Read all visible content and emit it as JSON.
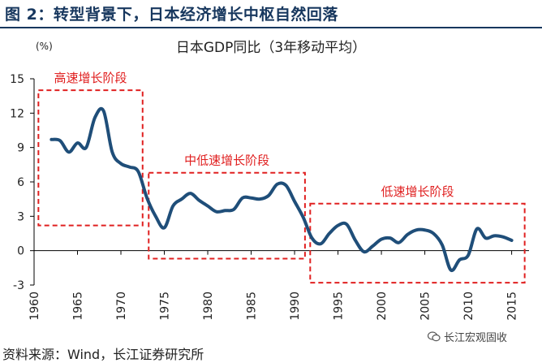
{
  "figure_title": "图 2：转型背景下，日本经济增长中枢自然回落",
  "source_note": "资料来源：Wind，长江证券研究所",
  "watermark": "长江宏观固收",
  "colors": {
    "line": "#1f4e79",
    "box": "#e02020",
    "label": "#e02020",
    "title": "#17375e"
  },
  "chart_data": {
    "type": "line",
    "title": "日本GDP同比（3年移动平均）",
    "ylabel": "(%)",
    "xlabel": "",
    "xlim": [
      1960,
      2017
    ],
    "ylim": [
      -3,
      15
    ],
    "xticks": [
      1960,
      1965,
      1970,
      1975,
      1980,
      1985,
      1990,
      1995,
      2000,
      2005,
      2010,
      2015
    ],
    "yticks": [
      -3,
      0,
      3,
      6,
      9,
      12,
      15
    ],
    "grid": false,
    "series": [
      {
        "name": "",
        "points": [
          [
            1962,
            9.7
          ],
          [
            1963,
            9.6
          ],
          [
            1964,
            8.6
          ],
          [
            1965,
            9.4
          ],
          [
            1966,
            9.0
          ],
          [
            1967,
            11.6
          ],
          [
            1968,
            12.2
          ],
          [
            1969,
            8.6
          ],
          [
            1970,
            7.6
          ],
          [
            1971,
            7.3
          ],
          [
            1972,
            6.9
          ],
          [
            1973,
            4.6
          ],
          [
            1974,
            3.0
          ],
          [
            1975,
            2.0
          ],
          [
            1976,
            3.9
          ],
          [
            1977,
            4.5
          ],
          [
            1978,
            5.0
          ],
          [
            1979,
            4.4
          ],
          [
            1980,
            3.9
          ],
          [
            1981,
            3.4
          ],
          [
            1982,
            3.5
          ],
          [
            1983,
            3.6
          ],
          [
            1984,
            4.6
          ],
          [
            1985,
            4.6
          ],
          [
            1986,
            4.5
          ],
          [
            1987,
            4.8
          ],
          [
            1988,
            5.8
          ],
          [
            1989,
            5.7
          ],
          [
            1990,
            4.3
          ],
          [
            1991,
            2.9
          ],
          [
            1992,
            1.1
          ],
          [
            1993,
            0.6
          ],
          [
            1994,
            1.5
          ],
          [
            1995,
            2.2
          ],
          [
            1996,
            2.3
          ],
          [
            1997,
            0.9
          ],
          [
            1998,
            -0.1
          ],
          [
            1999,
            0.4
          ],
          [
            2000,
            1.0
          ],
          [
            2001,
            1.1
          ],
          [
            2002,
            0.7
          ],
          [
            2003,
            1.4
          ],
          [
            2004,
            1.8
          ],
          [
            2005,
            1.8
          ],
          [
            2006,
            1.5
          ],
          [
            2007,
            0.5
          ],
          [
            2008,
            -1.7
          ],
          [
            2009,
            -0.8
          ],
          [
            2010,
            -0.4
          ],
          [
            2011,
            1.9
          ],
          [
            2012,
            1.1
          ],
          [
            2013,
            1.3
          ],
          [
            2014,
            1.2
          ],
          [
            2015,
            0.9
          ]
        ]
      }
    ],
    "annotations": [
      {
        "label": "高速增长阶段",
        "x_range": [
          1960.5,
          1972.5
        ],
        "y_range": [
          2.2,
          14
        ]
      },
      {
        "label": "中低速增长阶段",
        "x_range": [
          1973.2,
          1991.2
        ],
        "y_range": [
          -0.7,
          6.8
        ]
      },
      {
        "label": "低速增长阶段",
        "x_range": [
          1991.8,
          2016.5
        ],
        "y_range": [
          -2.8,
          4.1
        ]
      }
    ]
  }
}
